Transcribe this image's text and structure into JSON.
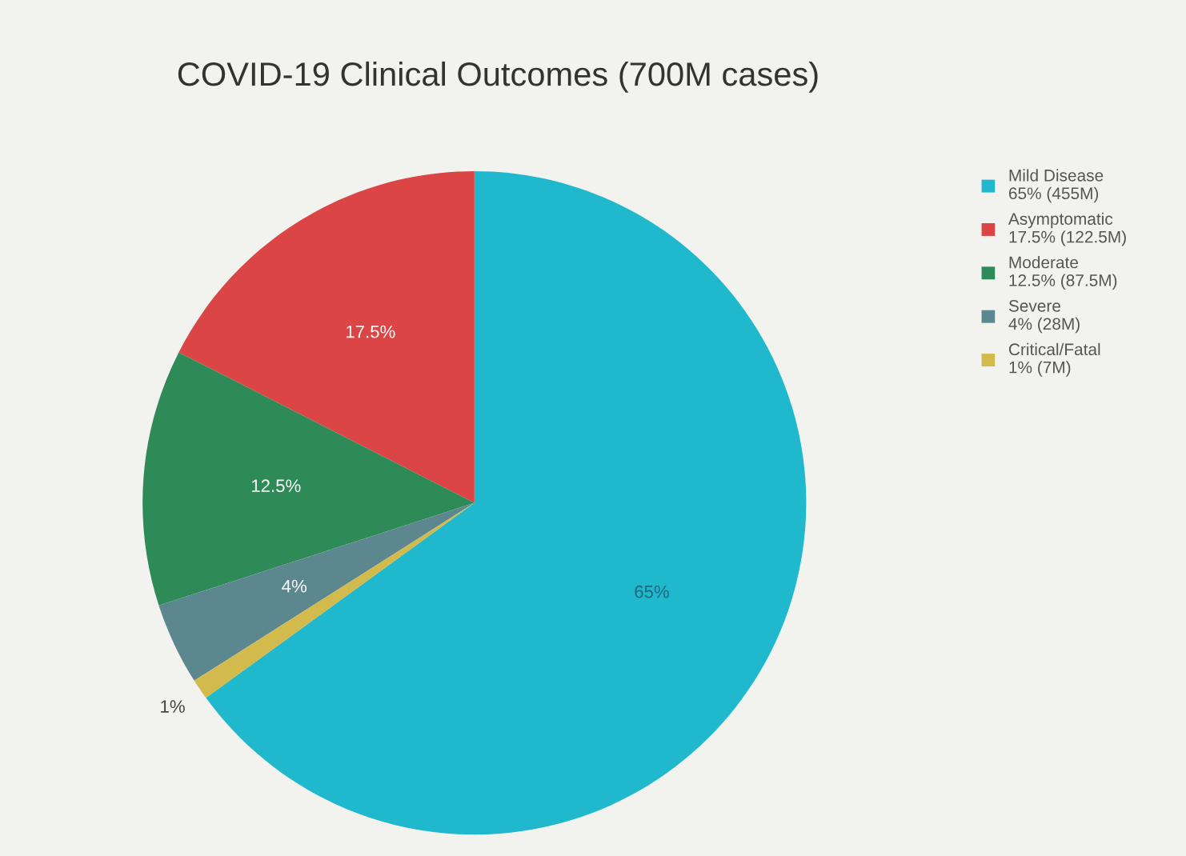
{
  "chart_data": {
    "type": "pie",
    "title": "COVID-19 Clinical Outcomes (700M cases)",
    "categories": [
      "Mild Disease\n65% (455M)",
      "Asymptomatic\n17.5% (122.5M)",
      "Moderate\n12.5% (87.5M)",
      "Severe\n4% (28M)",
      "Critical/Fatal\n1% (7M)"
    ],
    "values": [
      65,
      17.5,
      12.5,
      4,
      1
    ],
    "colors": [
      "#1fb8cd",
      "#db4545",
      "#2e8b57",
      "#5d878f",
      "#d2ba4c"
    ],
    "value_labels": [
      "65%",
      "17.5%",
      "12.5%",
      "4%",
      "1%"
    ],
    "legend": "top right"
  }
}
